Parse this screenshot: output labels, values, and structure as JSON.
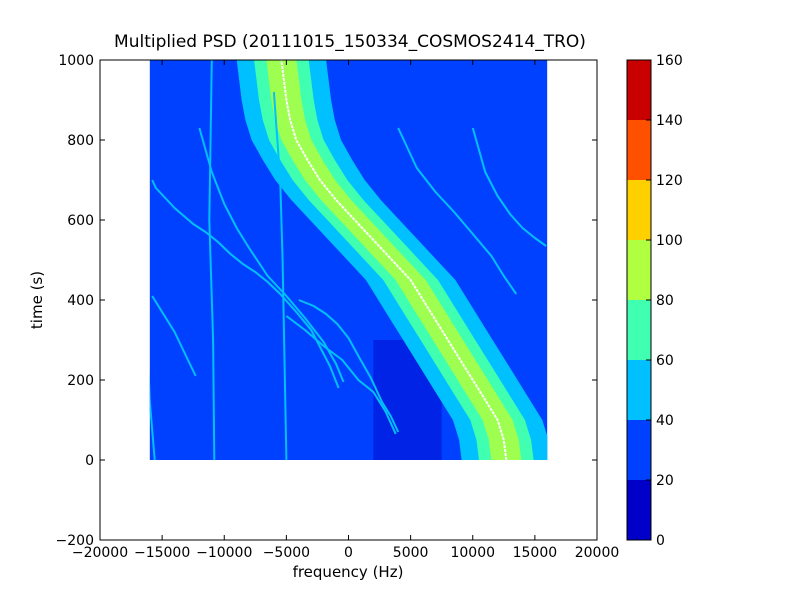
{
  "chart_data": {
    "type": "heatmap",
    "title": "Multiplied PSD (20111015_150334_COSMOS2414_TRO)",
    "xlabel": "frequency (Hz)",
    "ylabel": "time (s)",
    "xlim": [
      -20000,
      20000
    ],
    "ylim": [
      -200,
      1000
    ],
    "xticks": [
      -20000,
      -15000,
      -10000,
      -5000,
      0,
      5000,
      10000,
      15000,
      20000
    ],
    "xtick_labels": [
      "−20000",
      "−15000",
      "−10000",
      "−5000",
      "0",
      "5000",
      "10000",
      "15000",
      "20000"
    ],
    "yticks": [
      -200,
      0,
      200,
      400,
      600,
      800,
      1000
    ],
    "ytick_labels": [
      "−200",
      "0",
      "200",
      "400",
      "600",
      "800",
      "1000"
    ],
    "data_extent": {
      "freq": [
        -16000,
        16000
      ],
      "time": [
        0,
        1000
      ]
    },
    "background_level": 20,
    "colorbar": {
      "range": [
        0,
        160
      ],
      "ticks": [
        0,
        20,
        40,
        60,
        80,
        100,
        120,
        140,
        160
      ],
      "tick_labels": [
        "0",
        "20",
        "40",
        "60",
        "80",
        "100",
        "120",
        "140",
        "160"
      ],
      "colors": [
        "#0000c8",
        "#0040ff",
        "#00c0ff",
        "#40ffb0",
        "#b0ff40",
        "#ffd000",
        "#ff5000",
        "#c80000"
      ]
    },
    "main_band": {
      "center_freq": [
        12700,
        12500,
        12000,
        11000,
        10000,
        9000,
        8000,
        7000,
        6000,
        5000,
        3500,
        2000,
        500,
        -1000,
        -2300,
        -3300,
        -4200,
        -4700,
        -5000,
        -5400
      ],
      "time": [
        0,
        50,
        100,
        150,
        200,
        250,
        300,
        350,
        400,
        450,
        500,
        550,
        600,
        650,
        700,
        750,
        800,
        850,
        900,
        1000
      ],
      "core_level": 90,
      "green_half_width_hz": 2200,
      "cyan_half_width_hz": 3600
    },
    "faint_traces": [
      {
        "level": 50,
        "freq": [
          -15800,
          -15500,
          -14000,
          -12500,
          -11500,
          -10500,
          -9500,
          -8500,
          -7500,
          -6500,
          -5500,
          -4200,
          -3000,
          -1500,
          -800
        ],
        "time": [
          700,
          680,
          630,
          590,
          570,
          545,
          515,
          490,
          470,
          445,
          415,
          370,
          325,
          235,
          180
        ]
      },
      {
        "level": 50,
        "freq": [
          -15800,
          -15000,
          -14000,
          -13000,
          -12300
        ],
        "time": [
          410,
          370,
          320,
          255,
          210
        ]
      },
      {
        "level": 50,
        "freq": [
          -12000,
          -11000,
          -10000,
          -9000,
          -8000,
          -6500,
          -5000,
          -3500,
          -2000,
          -1000,
          -400
        ],
        "time": [
          830,
          720,
          640,
          580,
          530,
          460,
          410,
          355,
          295,
          240,
          195
        ]
      },
      {
        "level": 50,
        "freq": [
          -5000,
          -3500,
          -2000,
          -500,
          800,
          2000,
          3000,
          3800
        ],
        "time": [
          360,
          325,
          285,
          250,
          200,
          170,
          120,
          65
        ]
      },
      {
        "level": 50,
        "freq": [
          -4000,
          -2800,
          -1800,
          -900,
          0,
          800,
          1800,
          2700,
          3400,
          4000
        ],
        "time": [
          400,
          385,
          365,
          340,
          305,
          260,
          205,
          145,
          110,
          70
        ]
      },
      {
        "level": 50,
        "freq": [
          4000,
          5500,
          7000,
          8500,
          10000,
          11500,
          12500,
          13500
        ],
        "time": [
          830,
          730,
          670,
          620,
          565,
          510,
          460,
          415
        ]
      },
      {
        "level": 50,
        "freq": [
          10000,
          11000,
          12000,
          13000,
          14000,
          15000,
          15900
        ],
        "time": [
          830,
          720,
          660,
          615,
          580,
          555,
          535
        ]
      },
      {
        "level": 50,
        "freq": [
          -6000,
          -5500,
          -5300,
          -5000
        ],
        "time": [
          920,
          700,
          500,
          0
        ]
      },
      {
        "level": 50,
        "freq": [
          -11000,
          -11200,
          -10900,
          -10800
        ],
        "time": [
          1000,
          600,
          300,
          0
        ]
      },
      {
        "level": 50,
        "freq": [
          -16200,
          -16000,
          -15600
        ],
        "time": [
          320,
          150,
          0
        ]
      }
    ]
  }
}
